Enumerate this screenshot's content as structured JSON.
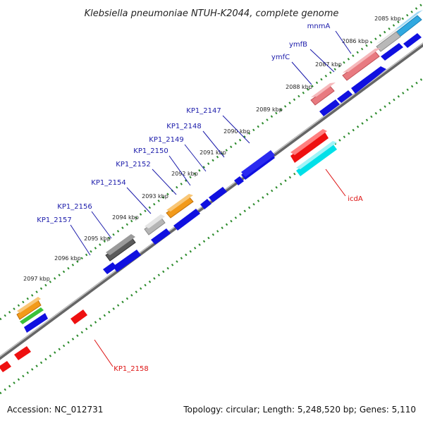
{
  "title": "Klebsiella pneumoniae NTUH-K2044, complete genome",
  "footer": {
    "accession": "Accession: NC_012731",
    "summary": "Topology: circular; Length: 5,248,520 bp; Genes: 5,110"
  },
  "colors": {
    "forward_gene": "#1010e0",
    "reverse_gene": "#ee1010",
    "label_blue": "#1a1aaa",
    "label_red": "#dd1111",
    "tick_green": "#2a8a2a",
    "backbone": "#777777"
  },
  "ticks": [
    {
      "label": "2085 kbp"
    },
    {
      "label": "2086 kbp"
    },
    {
      "label": "2087 kbp"
    },
    {
      "label": "2088 kbp"
    },
    {
      "label": "2089 kbp"
    },
    {
      "label": "2090 kbp"
    },
    {
      "label": "2091 kbp"
    },
    {
      "label": "2092 kbp"
    },
    {
      "label": "2093 kbp"
    },
    {
      "label": "2094 kbp"
    },
    {
      "label": "2095 kbp"
    },
    {
      "label": "2096 kbp"
    },
    {
      "label": "2097 kbp"
    }
  ],
  "gene_labels": [
    {
      "name": "mnmA",
      "strand": "outer"
    },
    {
      "name": "ymfB",
      "strand": "outer"
    },
    {
      "name": "ymfC",
      "strand": "outer"
    },
    {
      "name": "KP1_2147",
      "strand": "outer"
    },
    {
      "name": "KP1_2148",
      "strand": "outer"
    },
    {
      "name": "KP1_2149",
      "strand": "outer"
    },
    {
      "name": "KP1_2150",
      "strand": "outer"
    },
    {
      "name": "KP1_2152",
      "strand": "outer"
    },
    {
      "name": "KP1_2154",
      "strand": "outer"
    },
    {
      "name": "KP1_2156",
      "strand": "outer"
    },
    {
      "name": "KP1_2157",
      "strand": "outer"
    },
    {
      "name": "icdA",
      "strand": "inner"
    },
    {
      "name": "KP1_2158",
      "strand": "inner"
    }
  ]
}
